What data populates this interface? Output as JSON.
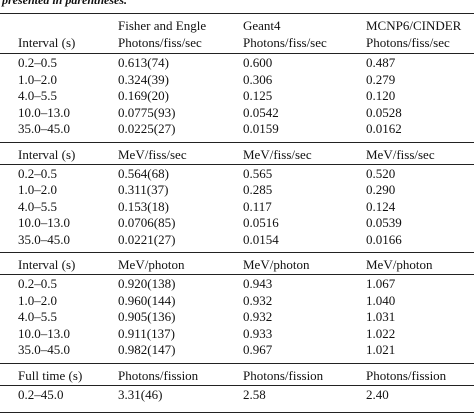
{
  "caption": "presented in parentheses.",
  "header": {
    "columns": [
      [
        "Interval (s)"
      ],
      [
        "Fisher and Engle",
        "Photons/fiss/sec"
      ],
      [
        "Geant4",
        "Photons/fiss/sec"
      ],
      [
        "MCNP6/CINDER",
        "Photons/fiss/sec"
      ]
    ]
  },
  "sections": [
    {
      "rows": [
        [
          "0.2–0.5",
          "0.613(74)",
          "0.600",
          "0.487"
        ],
        [
          "1.0–2.0",
          "0.324(39)",
          "0.306",
          "0.279"
        ],
        [
          "4.0–5.5",
          "0.169(20)",
          "0.125",
          "0.120"
        ],
        [
          "10.0–13.0",
          "0.0775(93)",
          "0.0542",
          "0.0528"
        ],
        [
          "35.0–45.0",
          "0.0225(27)",
          "0.0159",
          "0.0162"
        ]
      ]
    },
    {
      "header": [
        "Interval (s)",
        "MeV/fiss/sec",
        "MeV/fiss/sec",
        "MeV/fiss/sec"
      ],
      "rows": [
        [
          "0.2–0.5",
          "0.564(68)",
          "0.565",
          "0.520"
        ],
        [
          "1.0–2.0",
          "0.311(37)",
          "0.285",
          "0.290"
        ],
        [
          "4.0–5.5",
          "0.153(18)",
          "0.117",
          "0.124"
        ],
        [
          "10.0–13.0",
          "0.0706(85)",
          "0.0516",
          "0.0539"
        ],
        [
          "35.0–45.0",
          "0.0221(27)",
          "0.0154",
          "0.0166"
        ]
      ]
    },
    {
      "header": [
        "Interval (s)",
        "MeV/photon",
        "MeV/photon",
        "MeV/photon"
      ],
      "rows": [
        [
          "0.2–0.5",
          "0.920(138)",
          "0.943",
          "1.067"
        ],
        [
          "1.0–2.0",
          "0.960(144)",
          "0.932",
          "1.040"
        ],
        [
          "4.0–5.5",
          "0.905(136)",
          "0.932",
          "1.031"
        ],
        [
          "10.0–13.0",
          "0.911(137)",
          "0.933",
          "1.022"
        ],
        [
          "35.0–45.0",
          "0.982(147)",
          "0.967",
          "1.021"
        ]
      ]
    },
    {
      "header": [
        "Full time (s)",
        "Photons/fission",
        "Photons/fission",
        "Photons/fission"
      ],
      "rows": [
        [
          "0.2–45.0",
          "3.31(46)",
          "2.58",
          "2.40"
        ]
      ]
    }
  ]
}
